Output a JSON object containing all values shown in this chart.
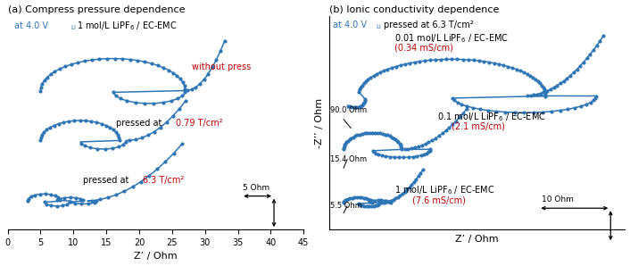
{
  "fig_width": 7.06,
  "fig_height": 2.98,
  "dpi": 100,
  "blue_color": "#2e75b6",
  "red_color": "#c00000",
  "black_color": "#1a1a1a",
  "bg_color": "#ffffff",
  "dot_size": 4,
  "lw": 1.1,
  "panel_a": {
    "title": "(a) Compress pressure dependence",
    "xlabel": "Z’ / Ohm",
    "xlim": [
      0,
      45
    ],
    "xticks": [
      0,
      5,
      10,
      15,
      20,
      25,
      30,
      35,
      40,
      45
    ]
  },
  "panel_b": {
    "title": "(b) Ionic conductivity dependence",
    "xlabel": "Z’ / Ohm",
    "ylabel": "-Z’’ / Ohm"
  }
}
